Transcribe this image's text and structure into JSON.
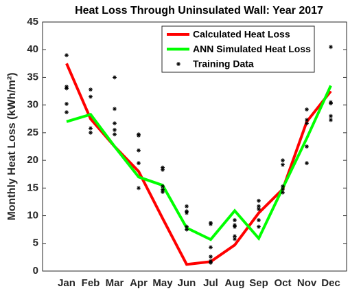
{
  "chart_data": {
    "type": "line",
    "title": "Heat Loss Through Uninsulated Wall: Year 2017",
    "y_label": "Monthly Heat Loss (kWh/m²)",
    "categories": [
      "Jan",
      "Feb",
      "Mar",
      "Apr",
      "May",
      "Jun",
      "Jul",
      "Aug",
      "Sep",
      "Oct",
      "Nov",
      "Dec"
    ],
    "ylim": [
      0,
      45
    ],
    "yticks": [
      0,
      5,
      10,
      15,
      20,
      25,
      30,
      35,
      40,
      45
    ],
    "legend": "top-right",
    "series": [
      {
        "name": "Calculated Heat Loss",
        "color": "#ff0000",
        "values": [
          37.5,
          27.5,
          22.5,
          18,
          9.5,
          1.2,
          1.7,
          4.7,
          10.5,
          14.8,
          27,
          32.5
        ]
      },
      {
        "name": "ANN Simulated Heat Loss",
        "color": "#00ff00",
        "values": [
          27,
          28.3,
          22.5,
          17,
          15.5,
          7.8,
          5.7,
          10.9,
          5.9,
          15,
          24,
          33.5
        ]
      },
      {
        "name": "Training Data",
        "color": "#000000",
        "marker": "*",
        "values": [
          [
            39,
            33.3,
            33,
            30.2,
            28.7
          ],
          [
            32.8,
            31.5,
            25.8,
            25
          ],
          [
            35,
            29.3,
            26.7,
            25.5,
            24.7
          ],
          [
            24.7,
            24.5,
            21.8,
            19.5,
            15
          ],
          [
            18.7,
            18.3,
            15.3,
            14.7,
            14.3
          ],
          [
            11.7,
            10.8,
            10.5,
            8,
            7.5
          ],
          [
            8.7,
            8.5,
            4.3,
            2.6,
            1.8,
            1.5
          ],
          [
            9.2,
            8.3,
            8,
            6.3,
            5.8
          ],
          [
            12.7,
            11.7,
            11.2,
            9.2,
            8
          ],
          [
            20,
            19.2,
            15.3,
            14.8,
            14.2
          ],
          [
            29.2,
            27.3,
            26.7,
            22.5,
            19.5
          ],
          [
            40.5,
            30.5,
            30.3,
            28,
            27.3
          ]
        ]
      }
    ]
  }
}
